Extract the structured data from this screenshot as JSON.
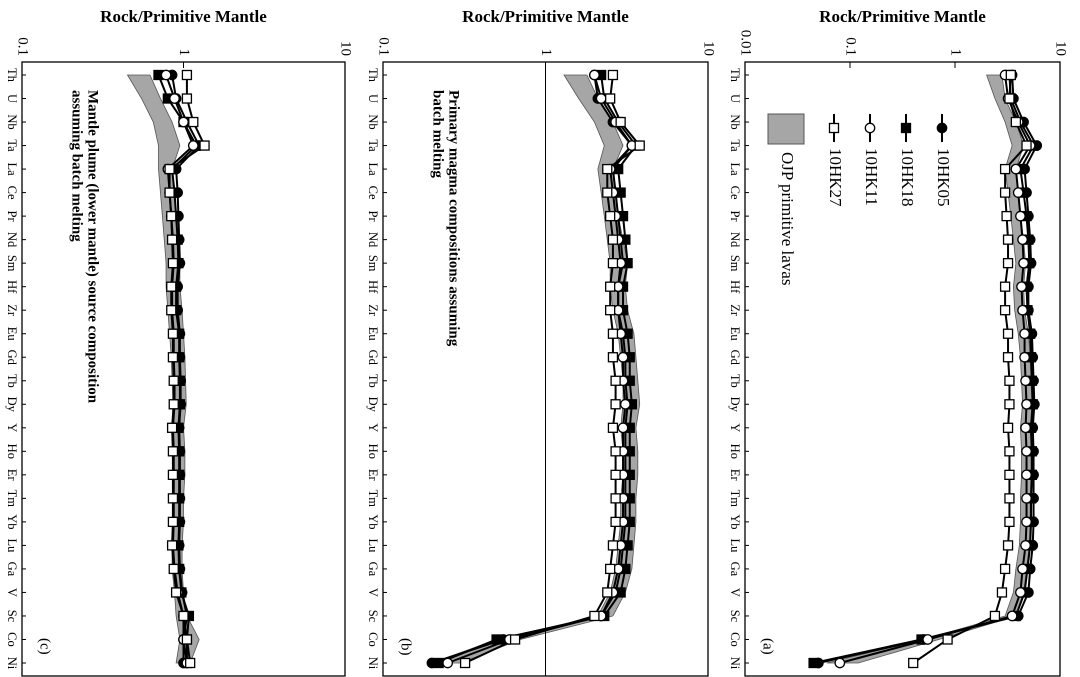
{
  "chart_data": [
    {
      "type": "line",
      "ylabel": "Rock/Primitive Mantle",
      "log": true,
      "categories": [
        "Th",
        "U",
        "Nb",
        "Ta",
        "La",
        "Ce",
        "Pr",
        "Nd",
        "Sm",
        "Hf",
        "Zr",
        "Eu",
        "Gd",
        "Tb",
        "Dy",
        "Y",
        "Ho",
        "Er",
        "Tm",
        "Yb",
        "Lu",
        "Ga",
        "V",
        "Sc",
        "Co",
        "Ni"
      ],
      "ylim": [
        0.01,
        10
      ],
      "yticks": [
        0.01,
        0.1,
        1,
        10
      ],
      "band": {
        "name": "OJP primitive lavas",
        "color": "#a6a6a6",
        "low": [
          2.0,
          2.4,
          3.0,
          3.5,
          3.0,
          3.2,
          3.4,
          3.6,
          3.8,
          3.6,
          3.7,
          4.0,
          4.2,
          4.3,
          4.4,
          4.2,
          4.3,
          4.3,
          4.2,
          4.2,
          4.1,
          3.8,
          3.6,
          3.0,
          0.5,
          0.06
        ],
        "high": [
          2.8,
          3.0,
          3.8,
          4.5,
          3.8,
          4.0,
          4.2,
          4.5,
          4.7,
          4.5,
          4.6,
          5.0,
          5.2,
          5.3,
          5.4,
          5.2,
          5.3,
          5.3,
          5.2,
          5.2,
          5.1,
          4.8,
          4.5,
          3.8,
          0.7,
          0.12
        ]
      },
      "series": [
        {
          "name": "10HK05",
          "marker": "circle",
          "color": "#000000",
          "values": [
            3.5,
            3.6,
            4.5,
            6.0,
            4.6,
            4.8,
            5.0,
            5.2,
            5.3,
            5.0,
            5.0,
            5.4,
            5.5,
            5.6,
            5.7,
            5.5,
            5.6,
            5.6,
            5.6,
            5.6,
            5.5,
            5.2,
            5.0,
            4.0,
            0.5,
            0.05
          ]
        },
        {
          "name": "10HK18",
          "marker": "square",
          "color": "#000000",
          "values": [
            3.3,
            3.4,
            4.2,
            5.6,
            4.2,
            4.5,
            4.8,
            5.0,
            5.1,
            4.8,
            4.9,
            5.2,
            5.3,
            5.4,
            5.5,
            5.3,
            5.4,
            5.4,
            5.3,
            5.3,
            5.2,
            4.9,
            4.6,
            3.8,
            0.48,
            0.045
          ]
        },
        {
          "name": "10HK11",
          "marker": "circle",
          "color": "#ffffff",
          "values": [
            3.0,
            3.2,
            4.0,
            5.2,
            3.8,
            4.0,
            4.2,
            4.4,
            4.5,
            4.3,
            4.4,
            4.6,
            4.6,
            4.7,
            4.8,
            4.7,
            4.8,
            4.8,
            4.8,
            4.8,
            4.7,
            4.4,
            4.2,
            3.5,
            0.55,
            0.08
          ]
        },
        {
          "name": "10HK27",
          "marker": "square",
          "color": "#ffffff",
          "values": [
            3.4,
            3.3,
            3.8,
            4.8,
            3.0,
            3.0,
            3.1,
            3.2,
            3.2,
            3.0,
            3.0,
            3.2,
            3.2,
            3.3,
            3.3,
            3.2,
            3.3,
            3.3,
            3.3,
            3.3,
            3.2,
            3.0,
            2.8,
            2.4,
            0.85,
            0.4
          ]
        }
      ],
      "panel_label": "(a)"
    },
    {
      "type": "line",
      "ylabel": "Rock/Primitive Mantle",
      "log": true,
      "categories": [
        "Th",
        "U",
        "Nb",
        "Ta",
        "La",
        "Ce",
        "Pr",
        "Nd",
        "Sm",
        "Hf",
        "Zr",
        "Eu",
        "Gd",
        "Tb",
        "Dy",
        "Y",
        "Ho",
        "Er",
        "Tm",
        "Yb",
        "Lu",
        "Ga",
        "V",
        "Sc",
        "Co",
        "Ni"
      ],
      "ylim": [
        0.1,
        10
      ],
      "yticks": [
        0.1,
        1,
        10
      ],
      "hline": 1,
      "band": {
        "color": "#a6a6a6",
        "low": [
          1.3,
          1.6,
          2.0,
          2.3,
          2.1,
          2.2,
          2.3,
          2.4,
          2.5,
          2.5,
          2.6,
          2.8,
          2.9,
          3.0,
          3.0,
          2.9,
          3.0,
          3.0,
          2.9,
          2.9,
          2.8,
          2.7,
          2.5,
          2.1,
          0.5,
          0.2
        ],
        "high": [
          1.8,
          2.1,
          2.6,
          3.0,
          2.6,
          2.7,
          2.8,
          3.0,
          3.2,
          3.1,
          3.2,
          3.5,
          3.6,
          3.7,
          3.8,
          3.6,
          3.7,
          3.7,
          3.6,
          3.6,
          3.5,
          3.4,
          3.1,
          2.6,
          0.7,
          0.3
        ]
      },
      "series": [
        {
          "marker": "circle",
          "color": "#000000",
          "values": [
            2.0,
            2.1,
            2.6,
            3.4,
            2.6,
            2.7,
            2.8,
            2.9,
            3.0,
            2.8,
            2.8,
            3.0,
            3.1,
            3.1,
            3.2,
            3.1,
            3.1,
            3.1,
            3.1,
            3.1,
            3.0,
            2.9,
            2.7,
            2.2,
            0.55,
            0.2
          ]
        },
        {
          "marker": "square",
          "color": "#000000",
          "values": [
            2.2,
            2.3,
            2.8,
            3.6,
            2.8,
            2.9,
            3.0,
            3.1,
            3.2,
            3.0,
            3.0,
            3.2,
            3.3,
            3.3,
            3.4,
            3.3,
            3.3,
            3.3,
            3.3,
            3.3,
            3.2,
            3.1,
            2.9,
            2.3,
            0.5,
            0.22
          ]
        },
        {
          "marker": "circle",
          "color": "#ffffff",
          "values": [
            2.0,
            2.2,
            2.7,
            3.4,
            2.5,
            2.6,
            2.7,
            2.8,
            2.9,
            2.8,
            2.8,
            2.9,
            3.0,
            3.0,
            3.1,
            3.0,
            3.0,
            3.0,
            3.0,
            3.0,
            2.9,
            2.8,
            2.6,
            2.2,
            0.6,
            0.25
          ]
        },
        {
          "marker": "square",
          "color": "#ffffff",
          "values": [
            2.6,
            2.5,
            2.9,
            3.8,
            2.4,
            2.4,
            2.5,
            2.6,
            2.6,
            2.5,
            2.5,
            2.6,
            2.6,
            2.7,
            2.7,
            2.6,
            2.7,
            2.7,
            2.7,
            2.7,
            2.6,
            2.5,
            2.4,
            2.0,
            0.65,
            0.32
          ]
        }
      ],
      "annotation": [
        "Primary magma compositions assuming",
        "batch melting"
      ],
      "panel_label": "(b)"
    },
    {
      "type": "line",
      "ylabel": "Rock/Primitive Mantle",
      "log": true,
      "categories": [
        "Th",
        "U",
        "Nb",
        "Ta",
        "La",
        "Ce",
        "Pr",
        "Nd",
        "Sm",
        "Hf",
        "Zr",
        "Eu",
        "Gd",
        "Tb",
        "Dy",
        "Y",
        "Ho",
        "Er",
        "Tm",
        "Yb",
        "Lu",
        "Ga",
        "V",
        "Sc",
        "Co",
        "Ni"
      ],
      "ylim": [
        0.1,
        10
      ],
      "yticks": [
        0.1,
        1,
        10
      ],
      "band": {
        "color": "#a6a6a6",
        "low": [
          0.45,
          0.55,
          0.65,
          0.7,
          0.7,
          0.72,
          0.74,
          0.76,
          0.78,
          0.78,
          0.8,
          0.82,
          0.84,
          0.85,
          0.86,
          0.85,
          0.86,
          0.86,
          0.86,
          0.86,
          0.85,
          0.85,
          0.88,
          0.9,
          0.95,
          0.9
        ],
        "high": [
          0.62,
          0.72,
          0.85,
          0.95,
          0.85,
          0.87,
          0.9,
          0.92,
          0.95,
          0.95,
          0.98,
          1.0,
          1.02,
          1.03,
          1.04,
          1.0,
          1.02,
          1.02,
          1.0,
          1.0,
          0.98,
          0.98,
          1.0,
          1.05,
          1.25,
          1.1
        ]
      },
      "series": [
        {
          "marker": "circle",
          "color": "#000000",
          "values": [
            0.85,
            0.9,
            1.05,
            1.25,
            0.9,
            0.92,
            0.93,
            0.94,
            0.95,
            0.92,
            0.92,
            0.95,
            0.95,
            0.96,
            0.96,
            0.94,
            0.95,
            0.95,
            0.95,
            0.95,
            0.94,
            0.95,
            0.98,
            1.05,
            1.0,
            1.0
          ]
        },
        {
          "marker": "square",
          "color": "#000000",
          "values": [
            0.7,
            0.8,
            1.0,
            1.2,
            0.85,
            0.88,
            0.9,
            0.92,
            0.93,
            0.9,
            0.9,
            0.94,
            0.94,
            0.95,
            0.95,
            0.93,
            0.94,
            0.94,
            0.94,
            0.94,
            0.93,
            0.94,
            0.97,
            1.08,
            1.05,
            1.05
          ]
        },
        {
          "marker": "circle",
          "color": "#ffffff",
          "values": [
            0.78,
            0.88,
            1.0,
            1.15,
            0.8,
            0.82,
            0.84,
            0.86,
            0.87,
            0.85,
            0.85,
            0.87,
            0.87,
            0.88,
            0.88,
            0.86,
            0.87,
            0.87,
            0.87,
            0.87,
            0.86,
            0.88,
            0.92,
            1.0,
            1.0,
            1.05
          ]
        },
        {
          "marker": "square",
          "color": "#ffffff",
          "values": [
            1.05,
            1.05,
            1.15,
            1.35,
            0.82,
            0.82,
            0.84,
            0.85,
            0.86,
            0.84,
            0.84,
            0.86,
            0.86,
            0.87,
            0.87,
            0.85,
            0.86,
            0.86,
            0.86,
            0.86,
            0.85,
            0.87,
            0.9,
            1.0,
            1.05,
            1.1
          ]
        }
      ],
      "annotation": [
        "Mantle plume (lower mantle) source composition",
        "assuming batch melting"
      ],
      "panel_label": "(c)"
    }
  ]
}
